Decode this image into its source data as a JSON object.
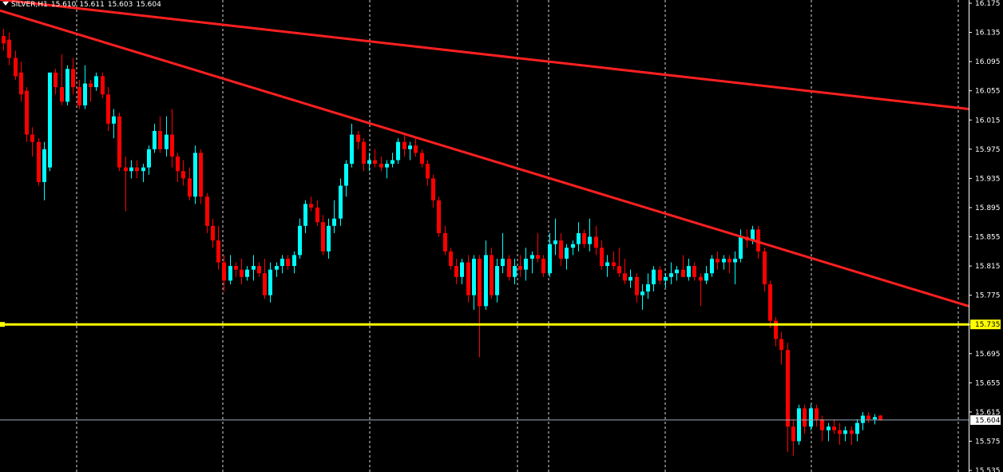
{
  "header": {
    "symbol": "SILVER,H1",
    "open": "15.610",
    "high": "15.611",
    "low": "15.603",
    "close": "15.604"
  },
  "colors": {
    "background": "#000000",
    "bull": "#00ffff",
    "bear": "#ff0000",
    "trendline": "#ff2020",
    "support": "#ffff00",
    "grid": "#ffffff",
    "axis_text": "#ffffff"
  },
  "chart_data": {
    "type": "candlestick",
    "symbol": "SILVER",
    "timeframe": "H1",
    "ylim": [
      15.535,
      16.175
    ],
    "y_ticks": [
      "16.175",
      "16.135",
      "16.095",
      "16.055",
      "16.015",
      "15.975",
      "15.935",
      "15.895",
      "15.855",
      "15.815",
      "15.775",
      "15.735",
      "15.695",
      "15.655",
      "15.615",
      "15.575",
      "15.535"
    ],
    "support_level": {
      "value": 15.735,
      "label": "15.735"
    },
    "current_price": {
      "value": 15.604,
      "label": "15.604"
    },
    "candles": [
      [
        16.13,
        16.14,
        16.11,
        16.12
      ],
      [
        16.125,
        16.135,
        16.09,
        16.1
      ],
      [
        16.1,
        16.11,
        16.07,
        16.075
      ],
      [
        16.08,
        16.095,
        16.04,
        16.05
      ],
      [
        16.055,
        16.06,
        15.985,
        15.995
      ],
      [
        15.995,
        16.005,
        15.965,
        15.985
      ],
      [
        15.985,
        15.99,
        15.925,
        15.93
      ],
      [
        15.93,
        15.985,
        15.905,
        15.975
      ],
      [
        15.95,
        16.075,
        15.945,
        16.08
      ],
      [
        16.08,
        16.085,
        16.05,
        16.06
      ],
      [
        16.06,
        16.105,
        16.035,
        16.04
      ],
      [
        16.04,
        16.09,
        16.035,
        16.085
      ],
      [
        16.085,
        16.1,
        16.05,
        16.06
      ],
      [
        16.06,
        16.07,
        16.03,
        16.035
      ],
      [
        16.035,
        16.09,
        16.03,
        16.065
      ],
      [
        16.065,
        16.07,
        16.04,
        16.06
      ],
      [
        16.06,
        16.08,
        16.055,
        16.075
      ],
      [
        16.075,
        16.08,
        16.045,
        16.05
      ],
      [
        16.05,
        16.06,
        16.0,
        16.01
      ],
      [
        16.01,
        16.03,
        15.99,
        16.02
      ],
      [
        16.02,
        16.025,
        15.945,
        15.95
      ],
      [
        15.95,
        15.965,
        15.89,
        15.945
      ],
      [
        15.945,
        15.96,
        15.935,
        15.95
      ],
      [
        15.95,
        15.96,
        15.935,
        15.945
      ],
      [
        15.945,
        15.955,
        15.93,
        15.95
      ],
      [
        15.95,
        15.98,
        15.94,
        15.975
      ],
      [
        15.975,
        16.01,
        15.97,
        16.0
      ],
      [
        16.0,
        16.02,
        15.97,
        15.975
      ],
      [
        15.975,
        16.02,
        15.965,
        15.995
      ],
      [
        15.995,
        16.03,
        15.95,
        15.965
      ],
      [
        15.965,
        15.97,
        15.93,
        15.945
      ],
      [
        15.945,
        15.96,
        15.925,
        15.935
      ],
      [
        15.935,
        15.95,
        15.905,
        15.91
      ],
      [
        15.91,
        15.98,
        15.9,
        15.97
      ],
      [
        15.97,
        15.975,
        15.9,
        15.91
      ],
      [
        15.91,
        15.915,
        15.86,
        15.87
      ],
      [
        15.87,
        15.88,
        15.84,
        15.85
      ],
      [
        15.85,
        15.87,
        15.81,
        15.82
      ],
      [
        15.82,
        15.83,
        15.78,
        15.795
      ],
      [
        15.795,
        15.83,
        15.79,
        15.815
      ],
      [
        15.815,
        15.82,
        15.8,
        15.81
      ],
      [
        15.81,
        15.825,
        15.79,
        15.8
      ],
      [
        15.8,
        15.815,
        15.795,
        15.81
      ],
      [
        15.81,
        15.83,
        15.795,
        15.815
      ],
      [
        15.815,
        15.82,
        15.8,
        15.805
      ],
      [
        15.805,
        15.825,
        15.77,
        15.775
      ],
      [
        15.775,
        15.82,
        15.765,
        15.81
      ],
      [
        15.81,
        15.82,
        15.8,
        15.815
      ],
      [
        15.815,
        15.83,
        15.805,
        15.825
      ],
      [
        15.825,
        15.83,
        15.81,
        15.815
      ],
      [
        15.815,
        15.835,
        15.805,
        15.83
      ],
      [
        15.83,
        15.88,
        15.825,
        15.87
      ],
      [
        15.87,
        15.905,
        15.86,
        15.9
      ],
      [
        15.9,
        15.91,
        15.89,
        15.895
      ],
      [
        15.895,
        15.905,
        15.87,
        15.875
      ],
      [
        15.875,
        15.885,
        15.83,
        15.835
      ],
      [
        15.835,
        15.88,
        15.825,
        15.87
      ],
      [
        15.87,
        15.905,
        15.86,
        15.88
      ],
      [
        15.88,
        15.935,
        15.87,
        15.925
      ],
      [
        15.925,
        15.96,
        15.91,
        15.955
      ],
      [
        15.955,
        16.01,
        15.95,
        15.995
      ],
      [
        15.995,
        16.0,
        15.975,
        15.985
      ],
      [
        15.985,
        15.99,
        15.945,
        15.955
      ],
      [
        15.955,
        15.97,
        15.945,
        15.96
      ],
      [
        15.96,
        15.975,
        15.95,
        15.955
      ],
      [
        15.955,
        15.965,
        15.945,
        15.95
      ],
      [
        15.95,
        15.96,
        15.935,
        15.955
      ],
      [
        15.955,
        15.97,
        15.95,
        15.96
      ],
      [
        15.96,
        15.99,
        15.955,
        15.985
      ],
      [
        15.985,
        15.995,
        15.965,
        15.975
      ],
      [
        15.975,
        15.985,
        15.96,
        15.98
      ],
      [
        15.98,
        15.99,
        15.965,
        15.97
      ],
      [
        15.97,
        15.975,
        15.95,
        15.955
      ],
      [
        15.955,
        15.96,
        15.925,
        15.935
      ],
      [
        15.935,
        15.94,
        15.895,
        15.905
      ],
      [
        15.905,
        15.91,
        15.855,
        15.86
      ],
      [
        15.86,
        15.87,
        15.83,
        15.835
      ],
      [
        15.835,
        15.84,
        15.81,
        15.815
      ],
      [
        15.815,
        15.825,
        15.79,
        15.8
      ],
      [
        15.8,
        15.825,
        15.79,
        15.82
      ],
      [
        15.82,
        15.83,
        15.765,
        15.775
      ],
      [
        15.775,
        15.83,
        15.755,
        15.825
      ],
      [
        15.825,
        15.83,
        15.69,
        15.76
      ],
      [
        15.76,
        15.85,
        15.755,
        15.83
      ],
      [
        15.83,
        15.84,
        15.77,
        15.775
      ],
      [
        15.775,
        15.825,
        15.765,
        15.815
      ],
      [
        15.815,
        15.86,
        15.805,
        15.825
      ],
      [
        15.825,
        15.83,
        15.795,
        15.8
      ],
      [
        15.8,
        15.825,
        15.79,
        15.815
      ],
      [
        15.815,
        15.83,
        15.8,
        15.81
      ],
      [
        15.81,
        15.84,
        15.795,
        15.825
      ],
      [
        15.825,
        15.835,
        15.805,
        15.83
      ],
      [
        15.83,
        15.86,
        15.82,
        15.825
      ],
      [
        15.825,
        15.83,
        15.8,
        15.805
      ],
      [
        15.805,
        15.86,
        15.8,
        15.845
      ],
      [
        15.845,
        15.88,
        15.83,
        15.85
      ],
      [
        15.85,
        15.86,
        15.815,
        15.825
      ],
      [
        15.825,
        15.845,
        15.81,
        15.84
      ],
      [
        15.84,
        15.85,
        15.83,
        15.845
      ],
      [
        15.845,
        15.875,
        15.835,
        15.86
      ],
      [
        15.86,
        15.865,
        15.84,
        15.845
      ],
      [
        15.845,
        15.88,
        15.835,
        15.855
      ],
      [
        15.855,
        15.87,
        15.83,
        15.84
      ],
      [
        15.84,
        15.85,
        15.81,
        15.815
      ],
      [
        15.815,
        15.83,
        15.8,
        15.82
      ],
      [
        15.82,
        15.835,
        15.81,
        15.815
      ],
      [
        15.815,
        15.84,
        15.8,
        15.805
      ],
      [
        15.805,
        15.825,
        15.79,
        15.795
      ],
      [
        15.795,
        15.81,
        15.785,
        15.8
      ],
      [
        15.8,
        15.805,
        15.765,
        15.775
      ],
      [
        15.775,
        15.79,
        15.755,
        15.78
      ],
      [
        15.78,
        15.805,
        15.77,
        15.79
      ],
      [
        15.79,
        15.815,
        15.78,
        15.81
      ],
      [
        15.81,
        15.815,
        15.79,
        15.795
      ],
      [
        15.795,
        15.805,
        15.785,
        15.8
      ],
      [
        15.8,
        15.82,
        15.79,
        15.805
      ],
      [
        15.805,
        15.815,
        15.795,
        15.81
      ],
      [
        15.81,
        15.83,
        15.8,
        15.8
      ],
      [
        15.8,
        15.825,
        15.795,
        15.815
      ],
      [
        15.815,
        15.82,
        15.795,
        15.8
      ],
      [
        15.8,
        15.805,
        15.76,
        15.795
      ],
      [
        15.795,
        15.815,
        15.79,
        15.805
      ],
      [
        15.805,
        15.83,
        15.8,
        15.825
      ],
      [
        15.825,
        15.835,
        15.81,
        15.82
      ],
      [
        15.82,
        15.83,
        15.81,
        15.825
      ],
      [
        15.825,
        15.83,
        15.805,
        15.82
      ],
      [
        15.82,
        15.835,
        15.79,
        15.825
      ],
      [
        15.825,
        15.865,
        15.82,
        15.855
      ],
      [
        15.855,
        15.865,
        15.84,
        15.85
      ],
      [
        15.85,
        15.87,
        15.845,
        15.865
      ],
      [
        15.865,
        15.87,
        15.825,
        15.835
      ],
      [
        15.835,
        15.84,
        15.78,
        15.79
      ],
      [
        15.79,
        15.795,
        15.73,
        15.74
      ],
      [
        15.74,
        15.745,
        15.705,
        15.715
      ],
      [
        15.715,
        15.725,
        15.68,
        15.7
      ],
      [
        15.7,
        15.71,
        15.56,
        15.595
      ],
      [
        15.595,
        15.605,
        15.555,
        15.575
      ],
      [
        15.575,
        15.625,
        15.57,
        15.62
      ],
      [
        15.62,
        15.625,
        15.585,
        15.595
      ],
      [
        15.595,
        15.625,
        15.59,
        15.62
      ],
      [
        15.62,
        15.625,
        15.595,
        15.605
      ],
      [
        15.605,
        15.61,
        15.575,
        15.59
      ],
      [
        15.59,
        15.6,
        15.575,
        15.595
      ],
      [
        15.595,
        15.605,
        15.585,
        15.59
      ],
      [
        15.59,
        15.6,
        15.57,
        15.585
      ],
      [
        15.585,
        15.595,
        15.575,
        15.59
      ],
      [
        15.59,
        15.595,
        15.57,
        15.585
      ],
      [
        15.585,
        15.605,
        15.575,
        15.6
      ],
      [
        15.6,
        15.615,
        15.59,
        15.61
      ],
      [
        15.61,
        15.615,
        15.6,
        15.605
      ],
      [
        15.605,
        15.612,
        15.598,
        15.608
      ],
      [
        15.61,
        15.611,
        15.603,
        15.604
      ]
    ],
    "trendlines": [
      {
        "from": [
          0,
          16.18
        ],
        "to": [
          1,
          16.03
        ],
        "color": "#ff2020"
      },
      {
        "from": [
          0,
          16.165
        ],
        "to": [
          1,
          15.76
        ],
        "color": "#ff2020"
      }
    ]
  }
}
